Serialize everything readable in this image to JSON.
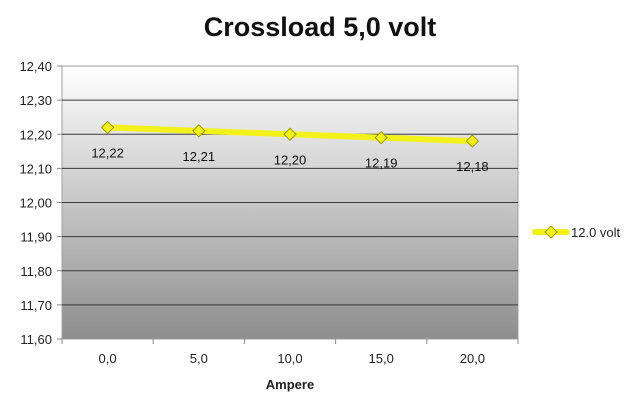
{
  "chart_data": {
    "type": "line",
    "title": "Crossload 5,0 volt",
    "xlabel": "Ampere",
    "ylabel": "",
    "categories": [
      "0,0",
      "5,0",
      "10,0",
      "15,0",
      "20,0"
    ],
    "ylim": [
      11.6,
      12.4
    ],
    "yticks": [
      "12,40",
      "12,30",
      "12,20",
      "12,10",
      "12,00",
      "11,90",
      "11,80",
      "11,70",
      "11,60"
    ],
    "grid": true,
    "legend_position": "right",
    "series": [
      {
        "name": "12.0 volt",
        "values": [
          12.22,
          12.21,
          12.2,
          12.19,
          12.18
        ],
        "labels": [
          "12,22",
          "12,21",
          "12,20",
          "12,19",
          "12,18"
        ],
        "color": "#f2f21a"
      }
    ]
  }
}
